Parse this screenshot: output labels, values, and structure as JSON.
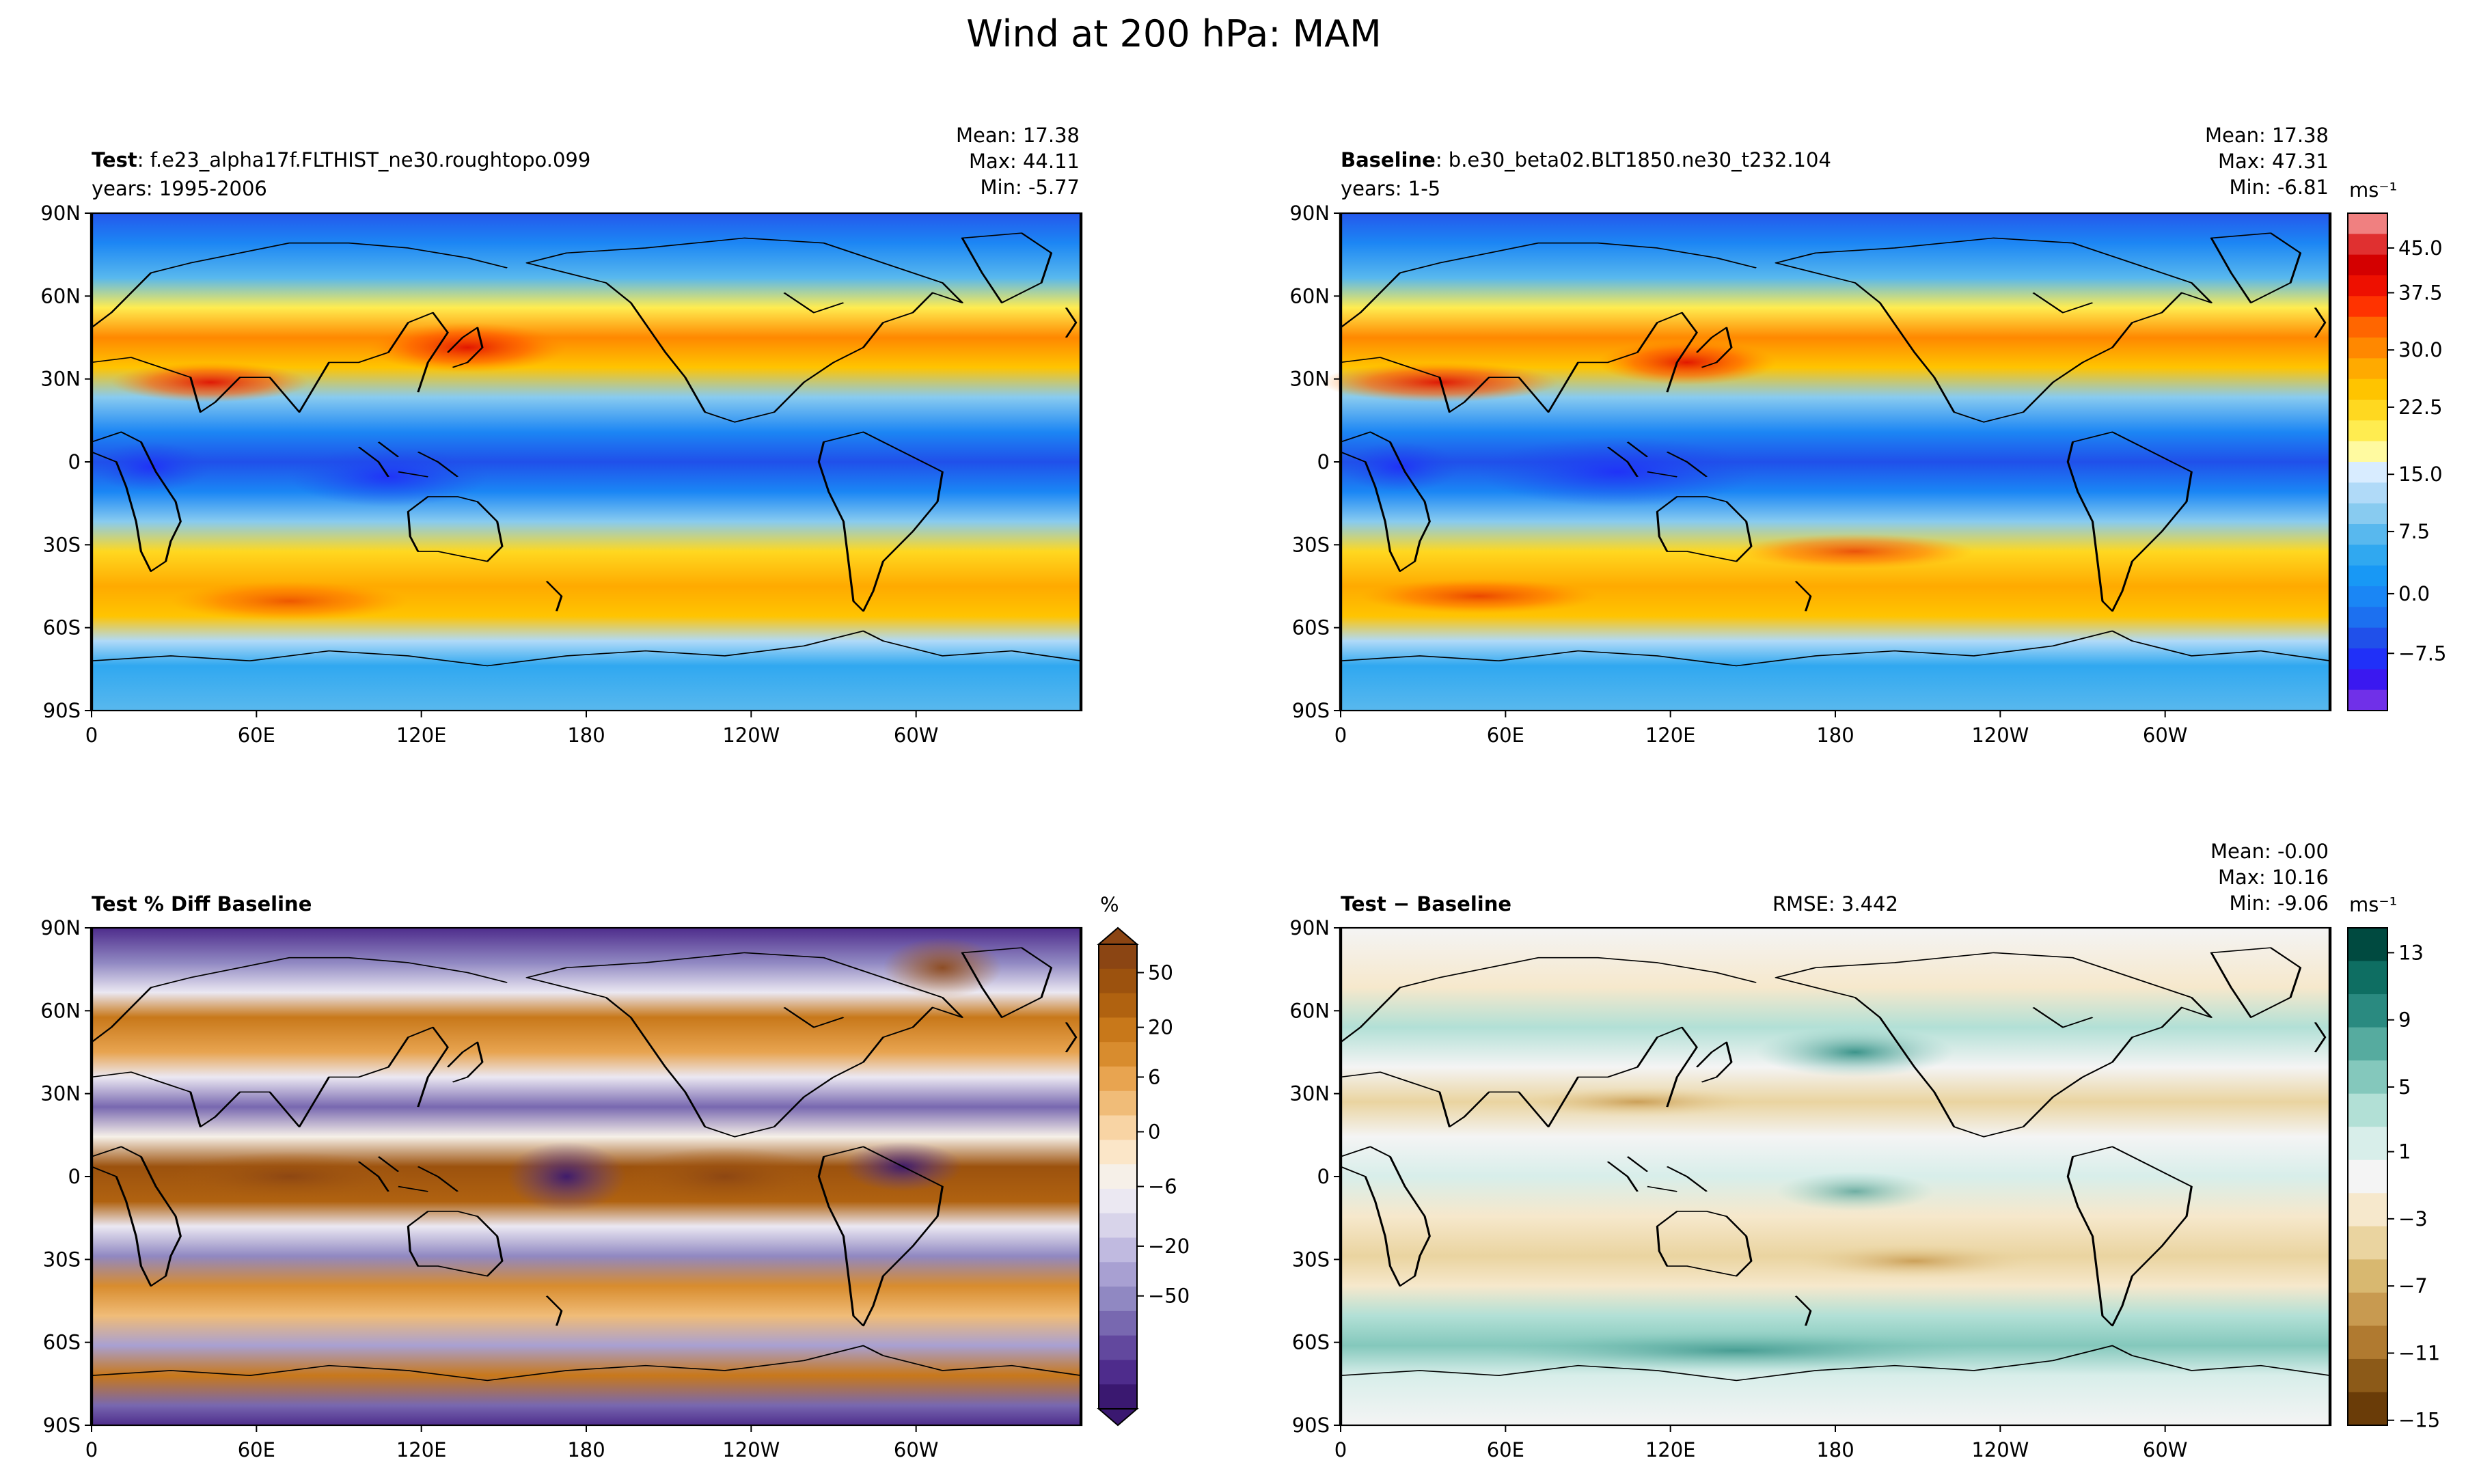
{
  "figure": {
    "title": "Wind at 200 hPa: MAM"
  },
  "axes": {
    "x_ticks": [
      "0",
      "60E",
      "120E",
      "180",
      "120W",
      "60W"
    ],
    "y_ticks": [
      "90N",
      "60N",
      "30N",
      "0",
      "30S",
      "60S",
      "90S"
    ]
  },
  "colors": {
    "land_outline": "#000000",
    "frame": "#000000"
  },
  "panels": [
    {
      "id": "test",
      "title_bold": "Test",
      "title_rest": ": f.e23_alpha17f.FLTHIST_ne30.roughtopo.099",
      "years": "years: 1995-2006",
      "stats": [
        "Mean: 17.38",
        "Max: 44.11",
        "Min: -5.77"
      ],
      "rmse": ""
    },
    {
      "id": "baseline",
      "title_bold": "Baseline",
      "title_rest": ": b.e30_beta02.BLT1850.ne30_t232.104",
      "years": "years: 1-5",
      "stats": [
        "Mean: 17.38",
        "Max: 47.31",
        "Min: -6.81"
      ],
      "rmse": ""
    },
    {
      "id": "pctdiff",
      "title_bold": "Test % Diff Baseline",
      "title_rest": "",
      "years": "",
      "stats": [],
      "rmse": ""
    },
    {
      "id": "diff",
      "title_bold": "Test − Baseline",
      "title_rest": "",
      "years": "",
      "stats": [
        "Mean: -0.00",
        "Max: 10.16",
        "Min: -9.06"
      ],
      "rmse": "RMSE: 3.442"
    }
  ],
  "colorbars": [
    {
      "id": "wind",
      "unit": "ms⁻¹",
      "ticks": [
        "45.0",
        "37.5",
        "30.0",
        "22.5",
        "15.0",
        "7.5",
        "0.0",
        "−7.5"
      ],
      "colors": [
        "#f08080",
        "#e03030",
        "#d40000",
        "#ee1000",
        "#ff3300",
        "#ff6600",
        "#ff8800",
        "#ffaa00",
        "#ffc400",
        "#ffd820",
        "#ffec50",
        "#fffaa0",
        "#d8ecff",
        "#b0daf8",
        "#88cbf0",
        "#58b8ee",
        "#30a8f0",
        "#1898f5",
        "#1a86f5",
        "#1c70f0",
        "#2050ea",
        "#2030f8",
        "#3a18f0",
        "#7030e8"
      ]
    },
    {
      "id": "pct",
      "unit": "%",
      "ticks": [
        "50",
        "20",
        "6",
        "0",
        "−6",
        "−20",
        "−50"
      ],
      "colors": [
        "#8b4513",
        "#9c520e",
        "#b06210",
        "#c8781a",
        "#d88c2e",
        "#e8a450",
        "#f0bc78",
        "#f8d4a4",
        "#fbe6c8",
        "#f6f0e8",
        "#ebe8f2",
        "#d8d4ea",
        "#c0bae0",
        "#a8a0d2",
        "#9088c2",
        "#7868b0",
        "#62489e",
        "#4e2c8c",
        "#3a1870"
      ]
    },
    {
      "id": "diffbar",
      "unit": "ms⁻¹",
      "ticks": [
        "13",
        "9",
        "5",
        "1",
        "−3",
        "−7",
        "−11",
        "−15"
      ],
      "colors": [
        "#004a40",
        "#0e6e62",
        "#2a8a80",
        "#56ab9f",
        "#84c8bc",
        "#b2e0d6",
        "#d8eeea",
        "#f4f4f4",
        "#f6e8cc",
        "#ead4a0",
        "#d8b870",
        "#c89a50",
        "#b07a30",
        "#8c5a18",
        "#6a3c08"
      ]
    }
  ],
  "chart_data": [
    {
      "type": "heatmap",
      "title": "Test: f.e23_alpha17f.FLTHIST_ne30.roughtopo.099",
      "subtitle": "years: 1995-2006",
      "unit": "ms⁻¹",
      "x_ticks": [
        "0",
        "60E",
        "120E",
        "180",
        "120W",
        "60W"
      ],
      "y_ticks": [
        "90N",
        "60N",
        "30N",
        "0",
        "30S",
        "60S",
        "90S"
      ],
      "mean": 17.38,
      "max": 44.11,
      "min": -5.77,
      "color_range": [
        -10,
        50
      ]
    },
    {
      "type": "heatmap",
      "title": "Baseline: b.e30_beta02.BLT1850.ne30_t232.104",
      "subtitle": "years: 1-5",
      "unit": "ms⁻¹",
      "x_ticks": [
        "0",
        "60E",
        "120E",
        "180",
        "120W",
        "60W"
      ],
      "y_ticks": [
        "90N",
        "60N",
        "30N",
        "0",
        "30S",
        "60S",
        "90S"
      ],
      "mean": 17.38,
      "max": 47.31,
      "min": -6.81,
      "color_range": [
        -10,
        50
      ]
    },
    {
      "type": "heatmap",
      "title": "Test % Diff Baseline",
      "unit": "%",
      "x_ticks": [
        "0",
        "60E",
        "120E",
        "180",
        "120W",
        "60W"
      ],
      "y_ticks": [
        "90N",
        "60N",
        "30N",
        "0",
        "30S",
        "60S",
        "90S"
      ],
      "color_range": [
        -100,
        100
      ]
    },
    {
      "type": "heatmap",
      "title": "Test − Baseline",
      "unit": "ms⁻¹",
      "x_ticks": [
        "0",
        "60E",
        "120E",
        "180",
        "120W",
        "60W"
      ],
      "y_ticks": [
        "90N",
        "60N",
        "30N",
        "0",
        "30S",
        "60S",
        "90S"
      ],
      "mean": -0.0,
      "max": 10.16,
      "min": -9.06,
      "rmse": 3.442,
      "color_range": [
        -15,
        15
      ]
    }
  ]
}
